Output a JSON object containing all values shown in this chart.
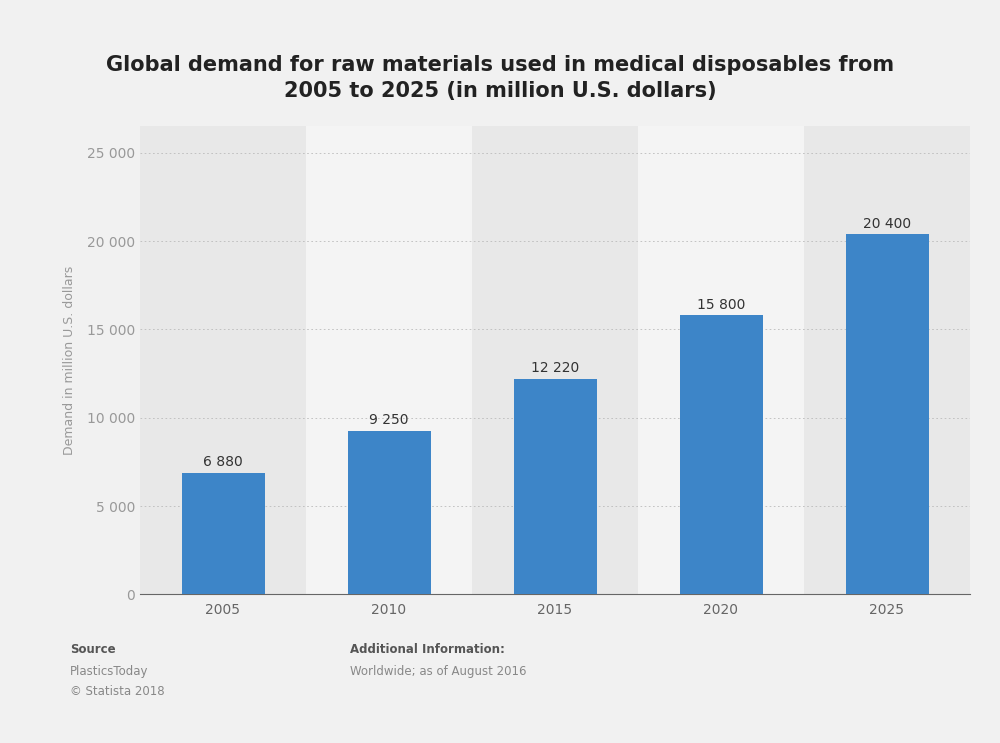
{
  "title": "Global demand for raw materials used in medical disposables from\n2005 to 2025 (in million U.S. dollars)",
  "categories": [
    "2005",
    "2010",
    "2015",
    "2020",
    "2025"
  ],
  "values": [
    6880,
    9250,
    12220,
    15800,
    20400
  ],
  "bar_color": "#3d85c8",
  "ylabel": "Demand in million U.S. dollars",
  "yticks": [
    0,
    5000,
    10000,
    15000,
    20000,
    25000
  ],
  "ytick_labels": [
    "0",
    "5 000",
    "10 000",
    "15 000",
    "20 000",
    "25 000"
  ],
  "ylim": [
    0,
    26500
  ],
  "bar_labels": [
    "6 880",
    "9 250",
    "12 220",
    "15 800",
    "20 400"
  ],
  "background_color": "#f1f1f1",
  "plot_bg_color": "#ffffff",
  "col_bg_dark": "#e8e8e8",
  "col_bg_light": "#f4f4f4",
  "title_fontsize": 15,
  "axis_label_fontsize": 9,
  "tick_fontsize": 10,
  "bar_label_fontsize": 10,
  "source_text": "Source",
  "source_line1": "PlasticsToday",
  "source_line2": "© Statista 2018",
  "add_info_title": "Additional Information:",
  "add_info_line1": "Worldwide; as of August 2016",
  "footer_fontsize": 8.5
}
